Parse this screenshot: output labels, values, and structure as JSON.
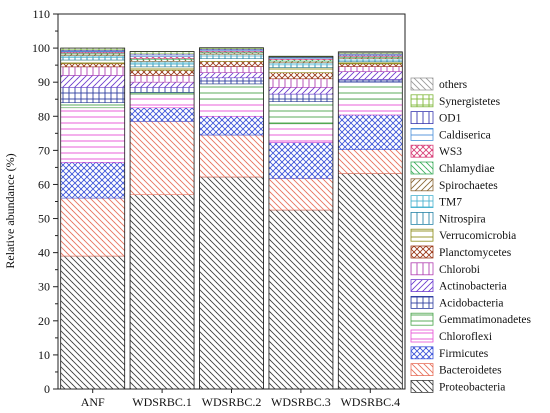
{
  "chart_data": {
    "type": "bar",
    "stacked": true,
    "title": "",
    "xlabel": "",
    "ylabel": "Relative abundance (%)",
    "ylim": [
      0,
      110
    ],
    "yticks": [
      0,
      10,
      20,
      30,
      40,
      50,
      60,
      70,
      80,
      90,
      100,
      110
    ],
    "grid": false,
    "legend_position": "right",
    "categories": [
      "ANF",
      "WDSRBC.1",
      "WDSRBC.2",
      "WDSRBC.3",
      "WDSRBC.4"
    ],
    "series": [
      {
        "name": "Proteobacteria",
        "color": "#404040",
        "pattern": "diag-down",
        "values": [
          39.0,
          57.0,
          62.2,
          52.5,
          63.2
        ]
      },
      {
        "name": "Bacteroidetes",
        "color": "#e8735e",
        "pattern": "diag-down",
        "values": [
          17.0,
          21.5,
          12.3,
          9.3,
          7.0
        ]
      },
      {
        "name": "Firmicutes",
        "color": "#3f56d9",
        "pattern": "crosshatch",
        "values": [
          10.5,
          4.0,
          5.5,
          10.5,
          10.2
        ]
      },
      {
        "name": "Chloroflexi",
        "color": "#e64fd6",
        "pattern": "horizontal",
        "values": [
          16.0,
          4.0,
          5.0,
          5.5,
          4.6
        ]
      },
      {
        "name": "Gemmatimonadetes",
        "color": "#49a44a",
        "pattern": "horizontal",
        "values": [
          1.5,
          0.5,
          4.5,
          6.5,
          5.0
        ]
      },
      {
        "name": "Acidobacteria",
        "color": "#2f3fa0",
        "pattern": "grid",
        "values": [
          4.5,
          1.5,
          1.8,
          2.2,
          0.8
        ]
      },
      {
        "name": "Actinobacteria",
        "color": "#6f3fcf",
        "pattern": "diag-up",
        "values": [
          3.5,
          1.5,
          1.5,
          2.0,
          2.3
        ]
      },
      {
        "name": "Chlorobi",
        "color": "#b240b2",
        "pattern": "vertical",
        "values": [
          2.5,
          2.0,
          1.8,
          2.5,
          1.5
        ]
      },
      {
        "name": "Planctomycetes",
        "color": "#9b3a1a",
        "pattern": "crosshatch",
        "values": [
          1.0,
          1.5,
          1.5,
          1.8,
          0.8
        ]
      },
      {
        "name": "Verrucomicrobia",
        "color": "#8c8c1a",
        "pattern": "horizontal",
        "values": [
          1.0,
          1.0,
          0.8,
          1.5,
          0.6
        ]
      },
      {
        "name": "Nitrospira",
        "color": "#2a86a8",
        "pattern": "vertical",
        "values": [
          0.8,
          0.8,
          0.8,
          0.8,
          0.5
        ]
      },
      {
        "name": "TM7",
        "color": "#4ab4d0",
        "pattern": "grid",
        "values": [
          0.5,
          0.8,
          0.5,
          0.6,
          0.4
        ]
      },
      {
        "name": "Spirochaetes",
        "color": "#8c6a3a",
        "pattern": "diag-up",
        "values": [
          0.5,
          0.5,
          0.4,
          0.5,
          0.4
        ]
      },
      {
        "name": "Chlamydiae",
        "color": "#3fae5e",
        "pattern": "diag-down",
        "values": [
          0.3,
          0.4,
          0.3,
          0.4,
          0.3
        ]
      },
      {
        "name": "WS3",
        "color": "#d9407a",
        "pattern": "crosshatch",
        "values": [
          0.3,
          0.5,
          0.3,
          0.3,
          0.3
        ]
      },
      {
        "name": "Caldiserica",
        "color": "#4a8fd9",
        "pattern": "horizontal",
        "values": [
          0.3,
          0.5,
          0.3,
          0.3,
          0.3
        ]
      },
      {
        "name": "OD1",
        "color": "#3a3ab0",
        "pattern": "vertical",
        "values": [
          0.3,
          0.5,
          0.3,
          0.2,
          0.3
        ]
      },
      {
        "name": "Synergistetes",
        "color": "#7fb83a",
        "pattern": "grid",
        "values": [
          0.5,
          0.5,
          0.3,
          0.2,
          0.2
        ]
      },
      {
        "name": "others",
        "color": "#9a9a9a",
        "pattern": "diag-down",
        "values": [
          0.0,
          0.0,
          0.0,
          0.0,
          0.2
        ]
      }
    ]
  }
}
